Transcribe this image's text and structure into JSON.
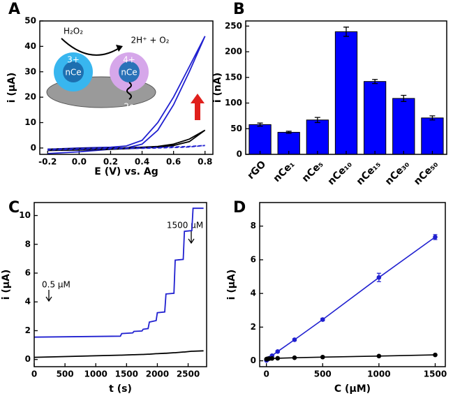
{
  "chart_data": [
    {
      "type": "line",
      "panel_label": "A",
      "xlabel": "E (V) vs. Ag",
      "ylabel": "i (μA)",
      "x": [
        -0.2,
        0,
        0.2,
        0.3,
        0.4,
        0.5,
        0.6,
        0.7,
        0.8,
        0.7,
        0.6,
        0.5,
        0.4,
        0.3,
        0.2,
        0,
        -0.2
      ],
      "xlim": [
        -0.25,
        0.85
      ],
      "xticks": [
        -0.2,
        {
          "value": 0,
          "label": "0.0"
        },
        0.2,
        0.4,
        0.6,
        0.8
      ],
      "ylim": [
        -2.5,
        50
      ],
      "yticks": [
        0,
        10,
        20,
        30,
        40,
        50
      ],
      "series": [
        {
          "color": "#2020d0",
          "dash": false,
          "values": [
            -0.5,
            0,
            0.3,
            0.8,
            3,
            10,
            20,
            32,
            44,
            30,
            17,
            7,
            1.5,
            0,
            -0.5,
            -1.5,
            -2.2
          ]
        },
        {
          "color": "#000000",
          "dash": false,
          "values": [
            -0.5,
            -0.2,
            0,
            0.1,
            0.3,
            0.6,
            1.5,
            3.5,
            7,
            2.5,
            1,
            0.3,
            0,
            -0.3,
            -0.5,
            -0.8,
            -1
          ]
        },
        {
          "color": "#2020d0",
          "dash": true,
          "values": [
            -0.5,
            -0.3,
            0,
            0,
            0.1,
            0.2,
            0.4,
            0.6,
            1,
            0.4,
            0.2,
            0,
            -0.1,
            -0.2,
            -0.3,
            -0.5,
            -0.8
          ]
        }
      ],
      "annotations": [
        "H₂O₂",
        "2H⁺ + O₂",
        "3+",
        "nCe",
        "4+",
        "nCe",
        "2e⁻"
      ]
    },
    {
      "type": "bar",
      "panel_label": "B",
      "ylabel": "i (nA)",
      "categories": [
        "rGO",
        "nCe₁",
        "nCe₅",
        "nCe₁₀",
        "nCe₁₅",
        "nCe₃₀",
        "nCe₅₀"
      ],
      "values": [
        58,
        43,
        67,
        239,
        142,
        109,
        71
      ],
      "errors": [
        3,
        2,
        5,
        9,
        4,
        6,
        4
      ],
      "color": "#0000ff",
      "ylim": [
        0,
        260
      ],
      "yticks": [
        0,
        50,
        100,
        150,
        200,
        250
      ]
    },
    {
      "type": "line",
      "panel_label": "C",
      "xlabel": "t (s)",
      "ylabel": "i (μA)",
      "x": [
        0,
        1400,
        1420,
        1600,
        1620,
        1750,
        1770,
        1850,
        1870,
        1980,
        2000,
        2120,
        2140,
        2270,
        2290,
        2420,
        2440,
        2560,
        2580,
        2750
      ],
      "xlim": [
        0,
        2800
      ],
      "xticks": [
        0,
        500,
        1000,
        1500,
        2000,
        2500
      ],
      "ylim": [
        -0.5,
        10.9
      ],
      "yticks": [
        0,
        2,
        4,
        6,
        8,
        10
      ],
      "series": [
        {
          "color": "#2020d0",
          "dash": false,
          "values": [
            1.55,
            1.62,
            1.8,
            1.85,
            1.95,
            1.98,
            2.1,
            2.15,
            2.6,
            2.7,
            3.25,
            3.3,
            4.55,
            4.6,
            6.9,
            6.95,
            8.9,
            8.95,
            10.5,
            10.5
          ]
        },
        {
          "color": "#000000",
          "dash": false,
          "values": [
            0.15,
            0.3,
            0.3,
            0.33,
            0.33,
            0.35,
            0.35,
            0.37,
            0.37,
            0.4,
            0.4,
            0.43,
            0.43,
            0.47,
            0.47,
            0.52,
            0.52,
            0.57,
            0.57,
            0.6
          ]
        }
      ],
      "annotations": [
        "0.5 μM",
        "1500 μM"
      ]
    },
    {
      "type": "scatter",
      "panel_label": "D",
      "xlabel": "C (μM)",
      "ylabel": "i (μA)",
      "x": [
        0.5,
        5,
        10,
        25,
        50,
        100,
        250,
        500,
        1000,
        1500
      ],
      "xlim": [
        -60,
        1590
      ],
      "xticks": [
        0,
        500,
        1000,
        1500
      ],
      "ylim": [
        -0.35,
        9.4
      ],
      "yticks": [
        0,
        2,
        4,
        6,
        8
      ],
      "series": [
        {
          "color": "#2020d0",
          "values": [
            0.02,
            0.05,
            0.1,
            0.15,
            0.3,
            0.55,
            1.25,
            2.45,
            4.95,
            7.35
          ],
          "errors": [
            0.02,
            0.02,
            0.03,
            0.03,
            0.04,
            0.05,
            0.06,
            0.08,
            0.25,
            0.15
          ]
        },
        {
          "color": "#000000",
          "values": [
            0.1,
            0.1,
            0.12,
            0.13,
            0.14,
            0.15,
            0.18,
            0.22,
            0.28,
            0.35
          ],
          "errors": [
            0.01,
            0.01,
            0.01,
            0.01,
            0.01,
            0.01,
            0.01,
            0.02,
            0.02,
            0.02
          ]
        }
      ]
    }
  ]
}
